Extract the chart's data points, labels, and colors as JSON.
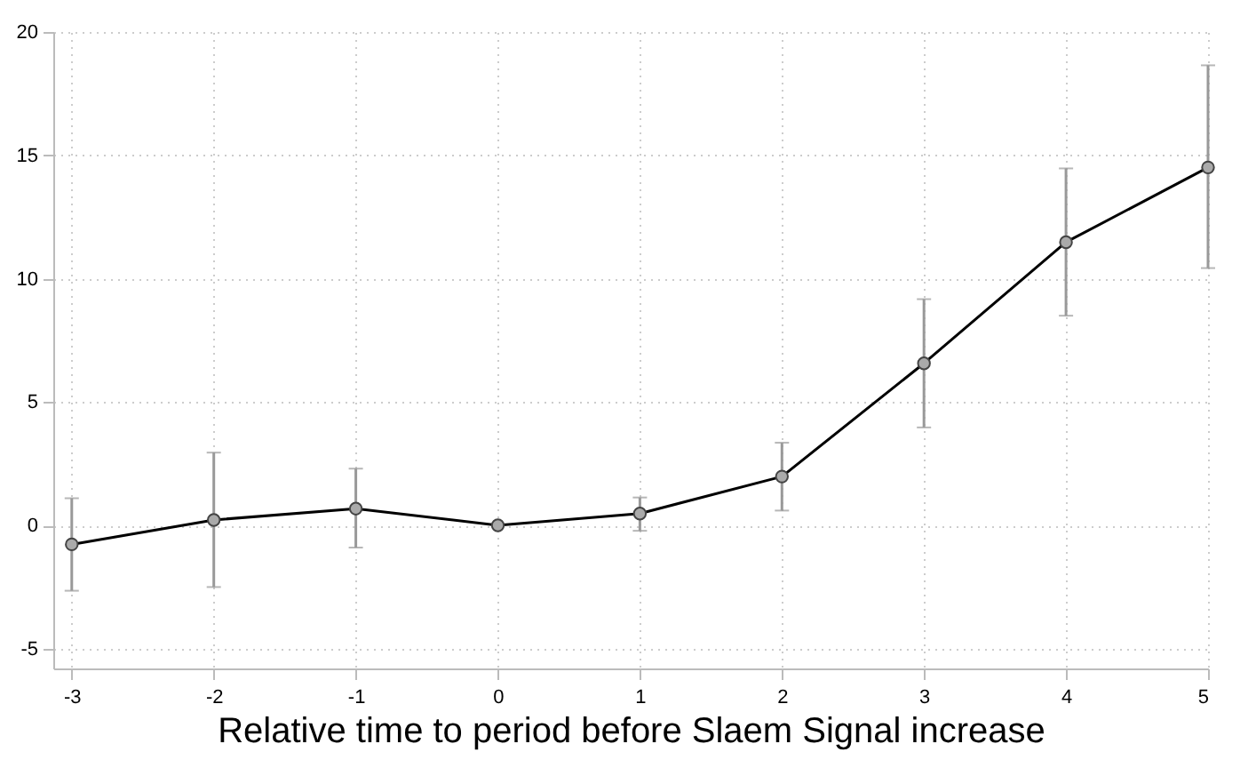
{
  "chart_data": {
    "type": "line",
    "xlabel": "Relative time to period before Slaem Signal increase",
    "x": [
      -3,
      -2,
      -1,
      0,
      1,
      2,
      3,
      4,
      5
    ],
    "series": [
      {
        "color": "#000000",
        "values": [
          -0.77,
          0.22,
          0.68,
          0,
          0.48,
          1.98,
          6.57,
          11.48,
          14.51
        ],
        "errors": [
          [
            -2.65,
            1.1
          ],
          [
            -2.5,
            2.95
          ],
          [
            -0.9,
            2.3
          ],
          null,
          [
            -0.22,
            1.13
          ],
          [
            0.6,
            3.35
          ],
          [
            3.97,
            9.17
          ],
          [
            8.5,
            14.47
          ],
          [
            10.43,
            18.65
          ]
        ]
      }
    ],
    "xlim": [
      -3.13,
      5
    ],
    "xticks": [
      -3,
      -2,
      -1,
      0,
      1,
      2,
      3,
      4,
      5
    ],
    "ylim": [
      -5.8,
      20
    ],
    "yticks": [
      -5,
      0,
      5,
      10,
      15,
      20
    ],
    "grid": true,
    "marker": "circle",
    "line_style": "solid"
  }
}
